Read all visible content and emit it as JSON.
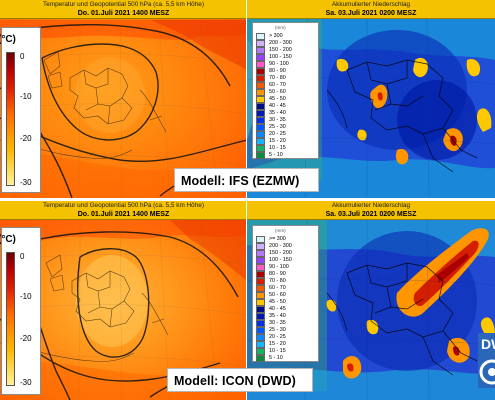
{
  "panels": {
    "ifs_temp": {
      "title": "Temperatur und Geopotential 500 hPa (ca. 5,5 km Höhe)",
      "day": "Do.",
      "date": "01.Juli",
      "year": "2021",
      "time": "1400",
      "zone": "MESZ",
      "legend_unit": "(°C)",
      "legend_ticks": [
        "0",
        "-10",
        "-20",
        "-30"
      ]
    },
    "ifs_precip": {
      "title": "Akkumulierter Niederschlag",
      "day": "Sa.",
      "date": "03.Juli",
      "year": "2021",
      "time": "0200",
      "zone": "MESZ",
      "legend_unit": "(mm)",
      "legend_classes": [
        "> 300",
        "200 - 300",
        "150 - 200",
        "100 - 150",
        "90 - 100",
        "80 - 90",
        "70 - 80",
        "60 - 70",
        "50 - 60",
        "45 - 50",
        "40 - 45",
        "35 - 40",
        "30 - 35",
        "25 - 30",
        "20 - 25",
        "15 - 20",
        "10 - 15",
        "5 - 10"
      ]
    },
    "icon_temp": {
      "title": "Temperatur und Geopotential 500 hPa (ca. 5,5 km Höhe)",
      "day": "Do.",
      "date": "01.Juli",
      "year": "2021",
      "time": "1400",
      "zone": "MESZ",
      "legend_unit": "(°C)",
      "legend_ticks": [
        "0",
        "-10",
        "-20",
        "-30"
      ]
    },
    "icon_precip": {
      "title": "Akkumulierter Niederschlag",
      "day": "Sa.",
      "date": "03.Juli",
      "year": "2021",
      "time": "0200",
      "zone": "MESZ",
      "legend_unit": "(mm)",
      "legend_classes": [
        ">= 300",
        "200 - 300",
        "150 - 200",
        "100 - 150",
        "90 - 100",
        "80 - 90",
        "70 - 80",
        "60 - 70",
        "50 - 60",
        "45 - 50",
        "40 - 45",
        "35 - 40",
        "30 - 35",
        "25 - 30",
        "20 - 25",
        "15 - 20",
        "10 - 15",
        "5 - 10"
      ]
    }
  },
  "precip_colors": [
    "#d8f4ff",
    "#d0b0ff",
    "#b478ff",
    "#9a40ff",
    "#ff59c8",
    "#a80000",
    "#d41e00",
    "#f05a00",
    "#ff9600",
    "#ffc800",
    "#000e84",
    "#0018b4",
    "#0030e8",
    "#0058ff",
    "#0c88ff",
    "#18b4ff",
    "#14b464",
    "#0a8c3c"
  ],
  "temperature_scale": {
    "min_c": -30,
    "max_c": 0
  },
  "labels": {
    "top_model": "Modell: IFS (EZMW)",
    "bottom_model": "Modell: ICON (DWD)"
  },
  "logo": {
    "text": "DW",
    "icon": "dwd-logo-icon"
  }
}
